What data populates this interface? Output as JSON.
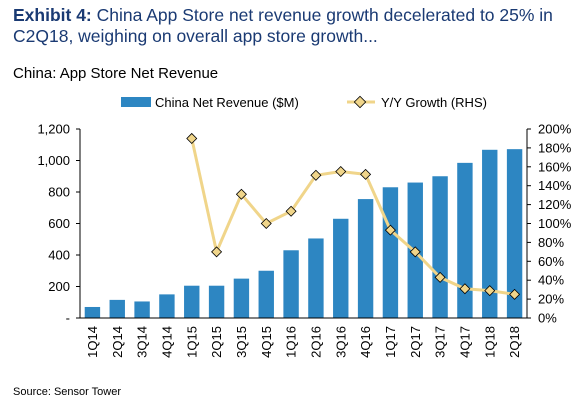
{
  "exhibit": {
    "label": "Exhibit 4:",
    "title": "China App Store net revenue growth decelerated to 25% in C2Q18, weighing on overall app store growth..."
  },
  "source": "Source: Sensor Tower",
  "chart_data": {
    "type": "bar",
    "title": "China: App Store Net Revenue",
    "categories": [
      "1Q14",
      "2Q14",
      "3Q14",
      "4Q14",
      "1Q15",
      "2Q15",
      "3Q15",
      "4Q15",
      "1Q16",
      "2Q16",
      "3Q16",
      "4Q16",
      "1Q17",
      "2Q17",
      "3Q17",
      "4Q17",
      "1Q18",
      "2Q18"
    ],
    "series": [
      {
        "name": "China Net Revenue ($M)",
        "type": "bar",
        "axis": "left",
        "color": "#2d86c2",
        "values": [
          70,
          115,
          105,
          150,
          205,
          205,
          250,
          300,
          430,
          505,
          630,
          755,
          830,
          860,
          900,
          985,
          1068,
          1072
        ]
      },
      {
        "name": "Y/Y Growth (RHS)",
        "type": "line",
        "axis": "right",
        "color": "#f0d58a",
        "marker_color": "#f0d58a",
        "values": [
          null,
          null,
          null,
          null,
          190,
          70,
          131,
          100,
          113,
          151,
          155,
          152,
          93,
          70,
          43,
          31,
          29,
          25
        ]
      }
    ],
    "y_left": {
      "min": 0,
      "max": 1200,
      "ticks": [
        "-",
        "200",
        "400",
        "600",
        "800",
        "1,000",
        "1,200"
      ]
    },
    "y_right": {
      "min": 0,
      "max": 200,
      "ticks": [
        "0%",
        "20%",
        "40%",
        "60%",
        "80%",
        "100%",
        "120%",
        "140%",
        "160%",
        "180%",
        "200%"
      ]
    },
    "legend_position": "top",
    "grid": false
  }
}
